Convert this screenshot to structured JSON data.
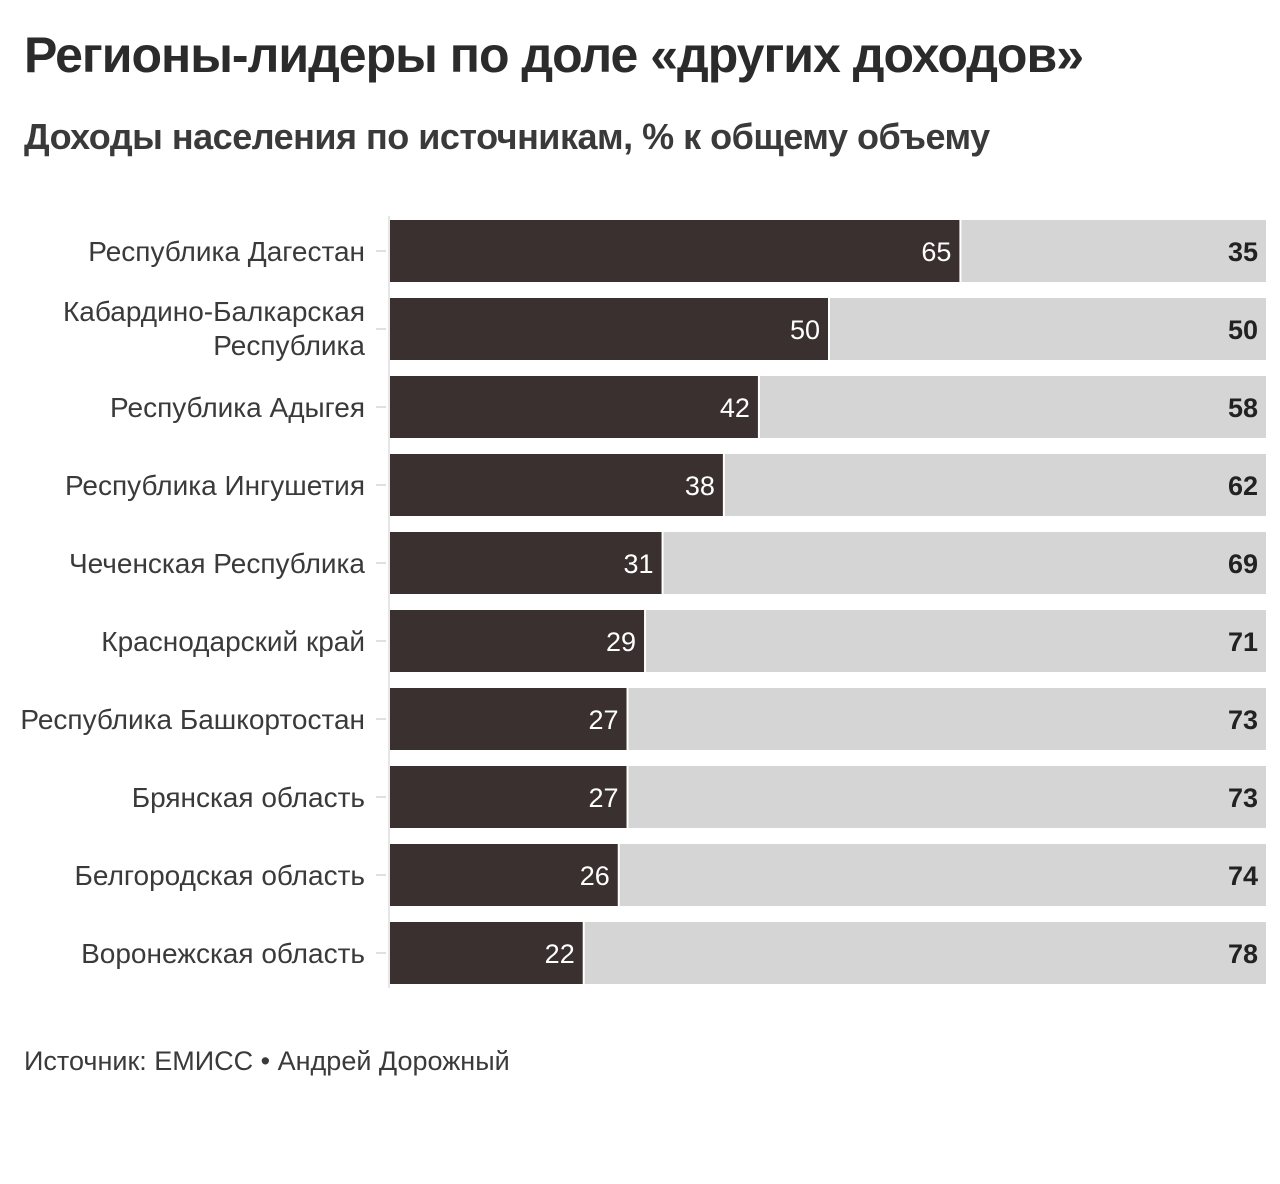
{
  "title": "Регионы-лидеры по доле «других доходов»",
  "subtitle": "Доходы населения по источникам, % к общему объему",
  "source": "Источник: ЕМИСС • Андрей Дорожный",
  "colors": {
    "other": "#3a3030",
    "rest": "#d5d5d5",
    "label_light": "#ffffff",
    "label_dark": "#222222"
  },
  "chart_data": {
    "type": "bar",
    "orientation": "horizontal",
    "stacked": true,
    "normalized": true,
    "categories": [
      "Республика Дагестан",
      "Кабардино-Балкарская Республика",
      "Республика Адыгея",
      "Республика Ингушетия",
      "Чеченская Республика",
      "Краснодарский край",
      "Республика Башкортостан",
      "Брянская область",
      "Белгородская область",
      "Воронежская область"
    ],
    "series": [
      {
        "values": [
          65,
          50,
          42,
          38,
          31,
          29,
          27,
          27,
          26,
          22
        ]
      },
      {
        "values": [
          35,
          50,
          58,
          62,
          69,
          71,
          73,
          73,
          74,
          78
        ]
      }
    ],
    "xlim": [
      0,
      100
    ],
    "grid": false,
    "legend": "none"
  }
}
